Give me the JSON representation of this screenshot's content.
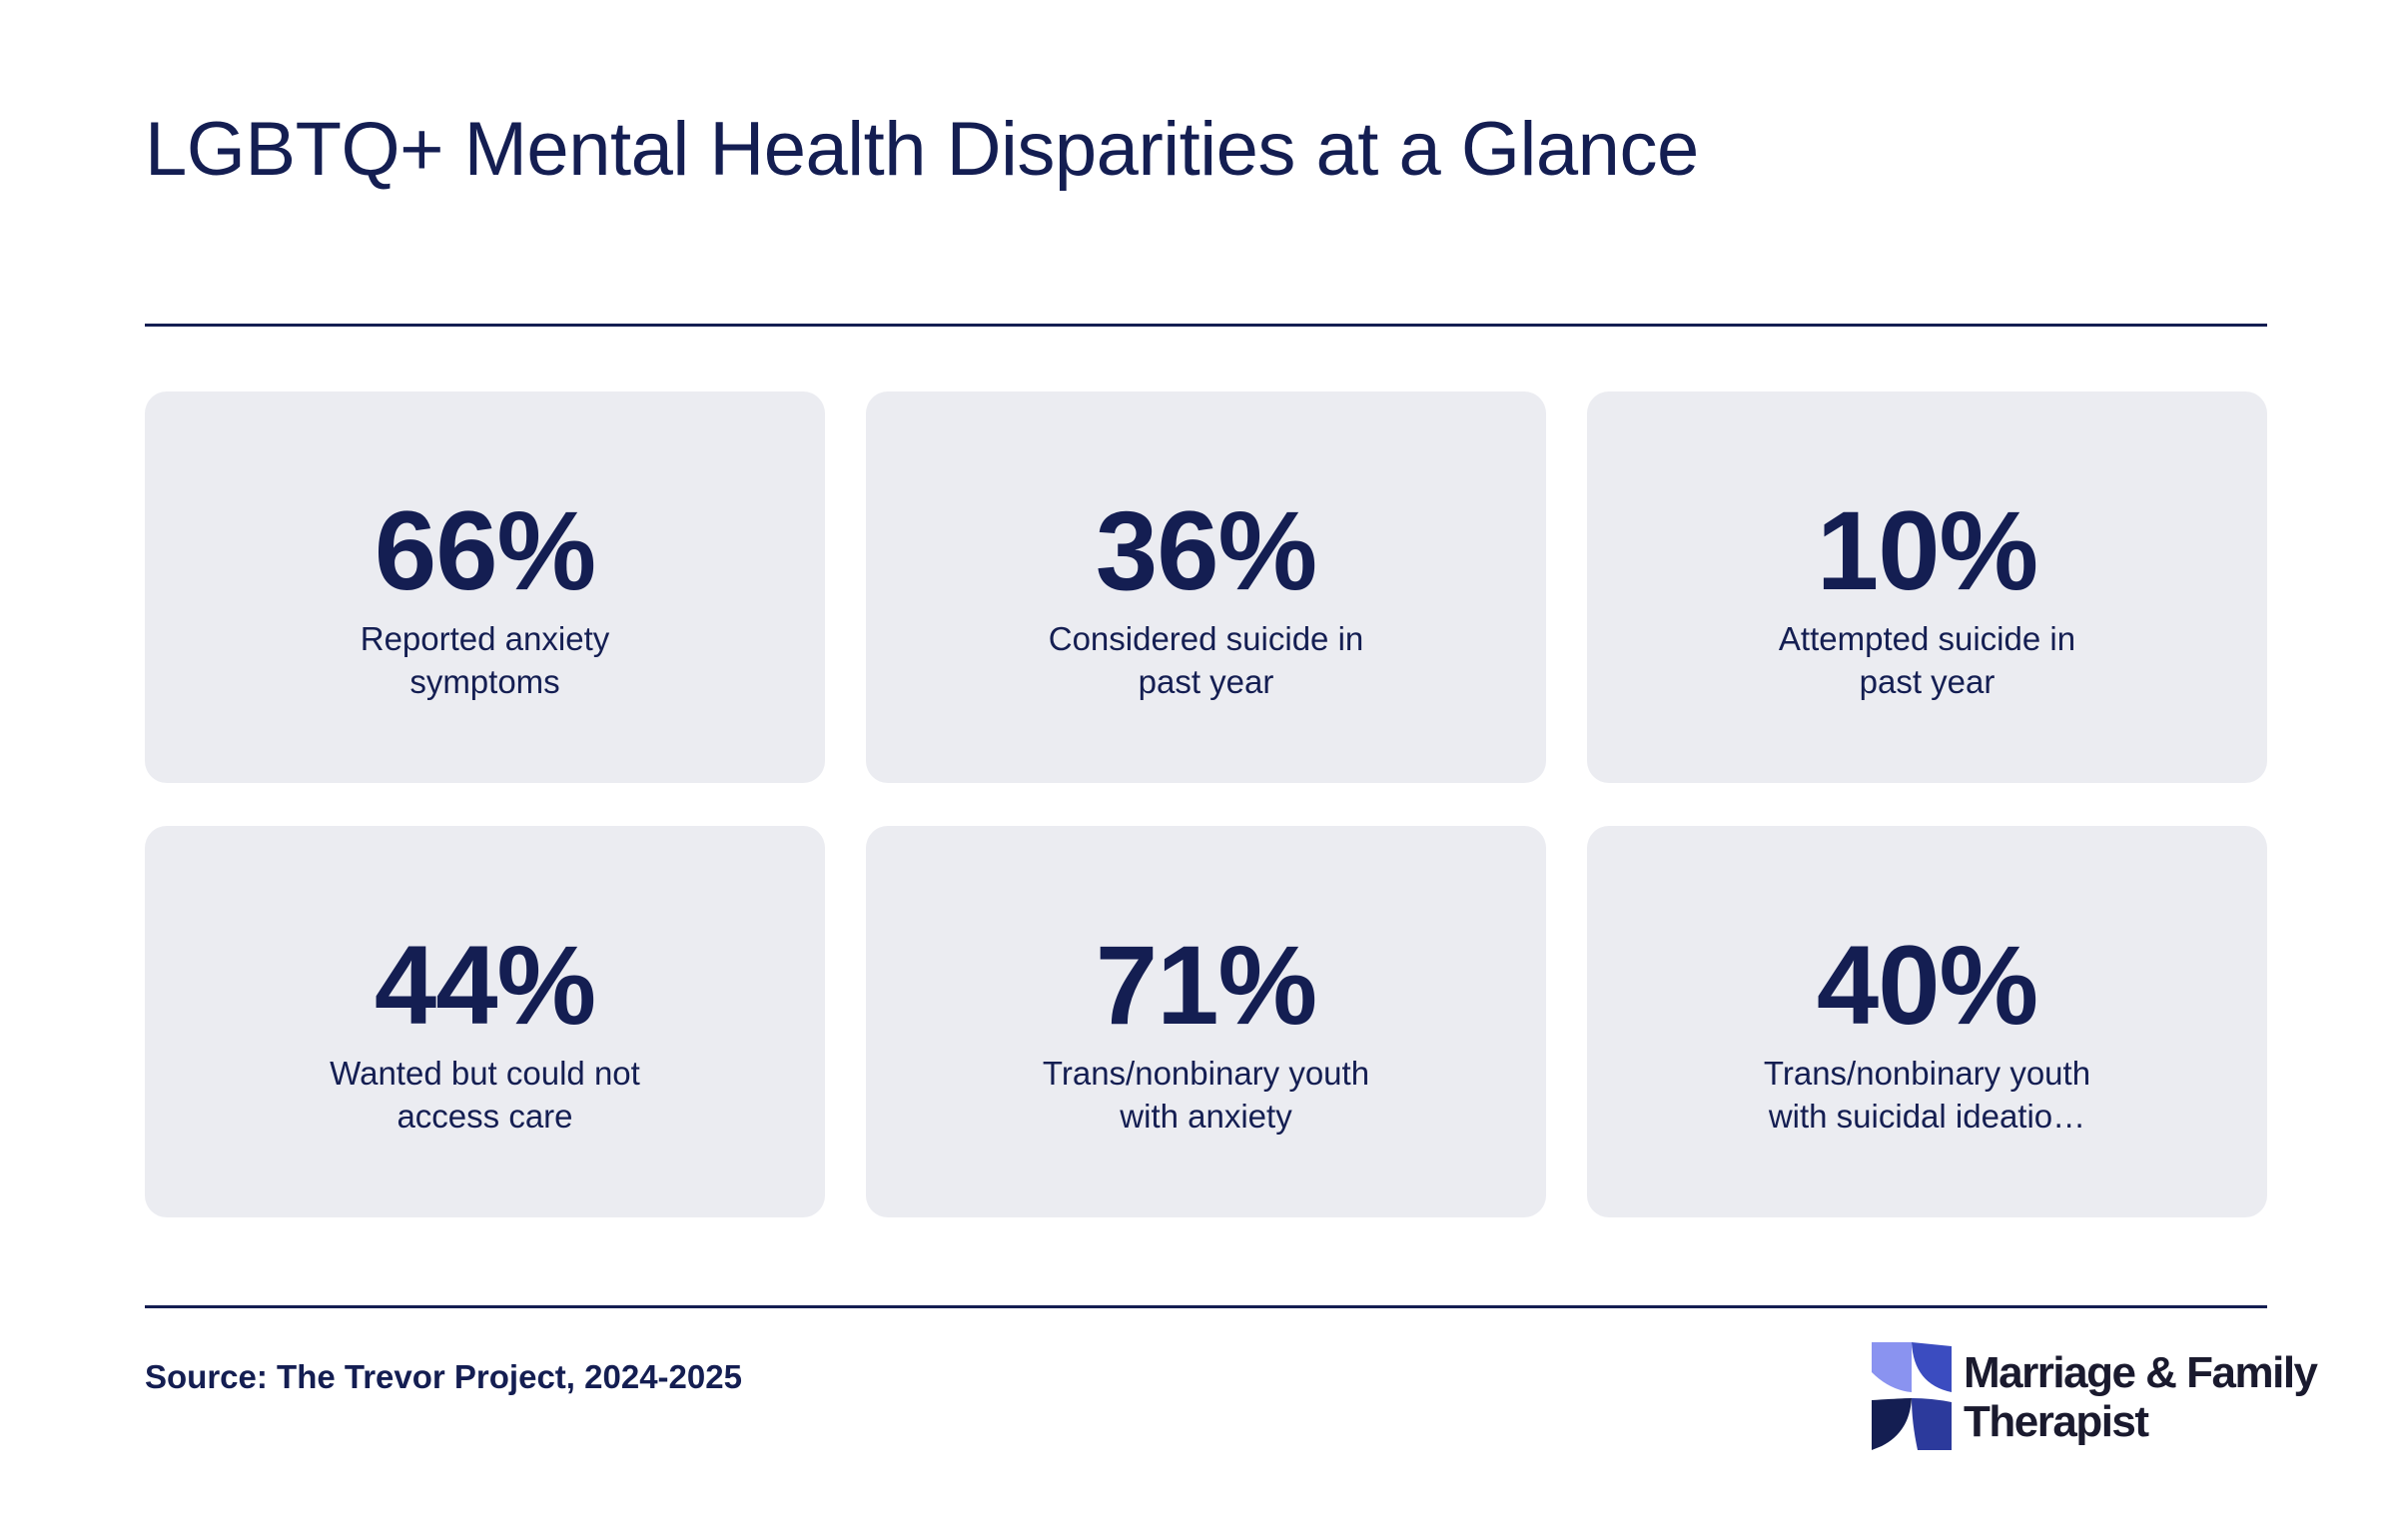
{
  "title": "LGBTQ+ Mental Health Disparities at a Glance",
  "stats": [
    {
      "value": "66%",
      "label": "Reported anxiety symptoms"
    },
    {
      "value": "36%",
      "label": "Considered suicide in past year"
    },
    {
      "value": "10%",
      "label": "Attempted suicide in past year"
    },
    {
      "value": "44%",
      "label": "Wanted but could not access care"
    },
    {
      "value": "71%",
      "label": "Trans/nonbinary youth with anxiety"
    },
    {
      "value": "40%",
      "label": "Trans/nonbinary youth with suicidal ideatio…"
    }
  ],
  "source": "Source: The Trevor Project, 2024-2025",
  "logo": {
    "line1": "Marriage & Family",
    "line2": "Therapist",
    "colors": [
      "#8a93f0",
      "#3b4cc0",
      "#141e52"
    ]
  },
  "colors": {
    "text": "#141e52",
    "card_bg": "#ebecf1"
  },
  "chart_data": {
    "type": "table",
    "title": "LGBTQ+ Mental Health Disparities at a Glance",
    "columns": [
      "value",
      "label"
    ],
    "rows": [
      [
        66,
        "Reported anxiety symptoms"
      ],
      [
        36,
        "Considered suicide in past year"
      ],
      [
        10,
        "Attempted suicide in past year"
      ],
      [
        44,
        "Wanted but could not access care"
      ],
      [
        71,
        "Trans/nonbinary youth with anxiety"
      ],
      [
        40,
        "Trans/nonbinary youth with suicidal ideatio…"
      ]
    ],
    "unit": "%",
    "source": "Source: The Trevor Project, 2024-2025"
  }
}
